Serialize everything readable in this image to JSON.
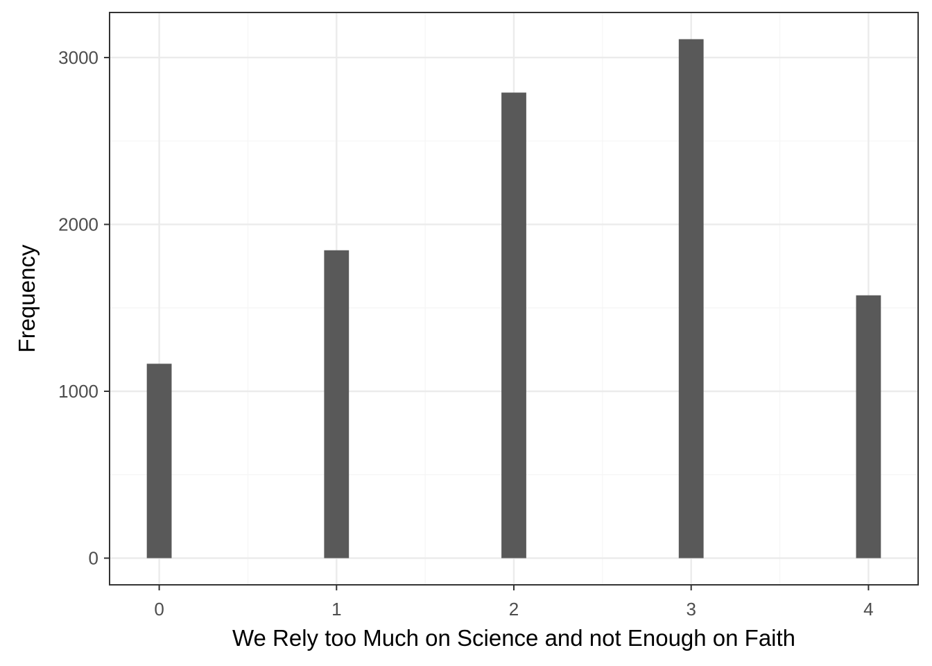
{
  "chart_data": {
    "type": "bar",
    "xlabel": "We Rely too Much on Science and not Enough on Faith",
    "ylabel": "Frequency",
    "x": [
      0,
      1,
      2,
      3,
      4
    ],
    "bars": [
      {
        "x": 0,
        "value": 1165
      },
      {
        "x": 1,
        "value": 1845
      },
      {
        "x": 2,
        "value": 2790
      },
      {
        "x": 3,
        "value": 3110
      },
      {
        "x": 4,
        "value": 1575
      }
    ],
    "bar_width": 0.14,
    "xlim": [
      -0.28,
      4.28
    ],
    "ylim": [
      -160,
      3270
    ],
    "x_ticks": [
      0,
      1,
      2,
      3,
      4
    ],
    "x_tick_labels": [
      "0",
      "1",
      "2",
      "3",
      "4"
    ],
    "y_ticks": [
      0,
      1000,
      2000,
      3000
    ],
    "y_tick_labels": [
      "0",
      "1000",
      "2000",
      "3000"
    ],
    "x_minor_ticks": [
      0.5,
      1.5,
      2.5,
      3.5
    ],
    "y_minor_ticks": [
      500,
      1500,
      2500
    ],
    "grid": true,
    "theme": "bw",
    "colors": {
      "bar": "#595959",
      "grid_major": "#ebebeb",
      "grid_minor": "#f5f5f5",
      "border": "#333333",
      "background": "#ffffff"
    }
  }
}
